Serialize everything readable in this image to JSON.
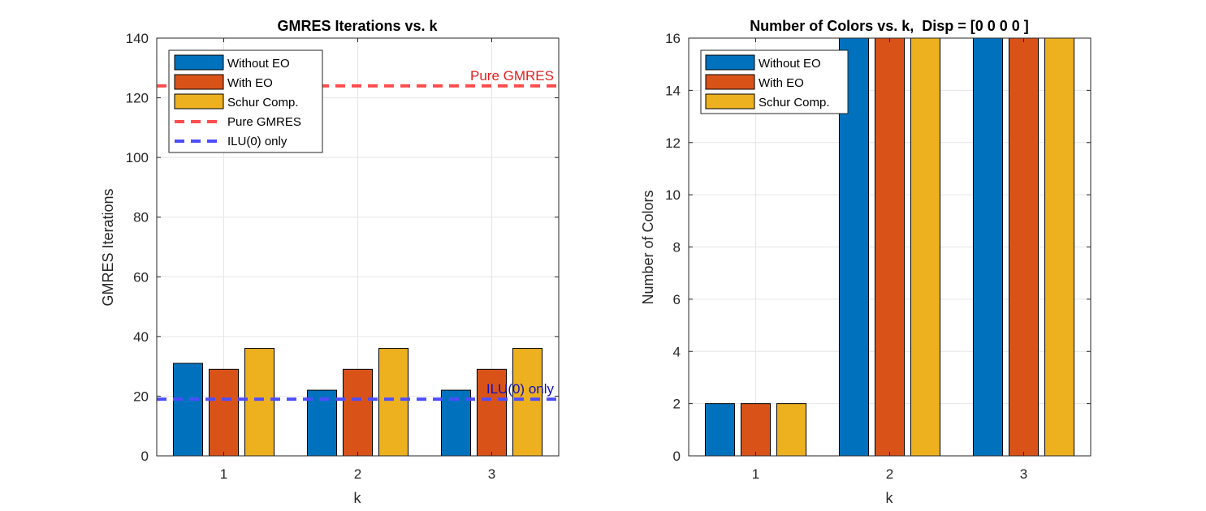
{
  "chart_data": [
    {
      "type": "bar",
      "title": "GMRES Iterations vs. k",
      "xlabel": "k",
      "ylabel": "GMRES Iterations",
      "categories": [
        "1",
        "2",
        "3"
      ],
      "yticks": [
        "0",
        "20",
        "40",
        "60",
        "80",
        "100",
        "120",
        "140"
      ],
      "ylim": [
        0,
        140
      ],
      "grid": true,
      "legend_location": "top-left",
      "series": [
        {
          "name": "Without EO",
          "color": "#0072BD",
          "values": [
            31,
            22,
            22
          ]
        },
        {
          "name": "With EO",
          "color": "#D95319",
          "values": [
            29,
            29,
            29
          ]
        },
        {
          "name": "Schur Comp.",
          "color": "#EDB120",
          "values": [
            36,
            36,
            36
          ]
        }
      ],
      "reference_lines": [
        {
          "name": "Pure GMRES",
          "value": 124,
          "color": "#ff4d4d",
          "label_color": "#e02020",
          "style": "dashed"
        },
        {
          "name": "ILU(0) only",
          "value": 19,
          "color": "#4d4dff",
          "label_color": "#1010c0",
          "style": "dashed"
        }
      ]
    },
    {
      "type": "bar",
      "title": "Number of Colors vs. k,  Disp = [0 0 0 0 ]",
      "xlabel": "k",
      "ylabel": "Number of Colors",
      "categories": [
        "1",
        "2",
        "3"
      ],
      "yticks": [
        "0",
        "2",
        "4",
        "6",
        "8",
        "10",
        "12",
        "14",
        "16"
      ],
      "ylim": [
        0,
        16
      ],
      "grid": true,
      "legend_location": "top-left",
      "series": [
        {
          "name": "Without EO",
          "color": "#0072BD",
          "values": [
            2,
            16,
            16
          ]
        },
        {
          "name": "With EO",
          "color": "#D95319",
          "values": [
            2,
            16,
            16
          ]
        },
        {
          "name": "Schur Comp.",
          "color": "#EDB120",
          "values": [
            2,
            16,
            16
          ]
        }
      ],
      "reference_lines": []
    }
  ]
}
